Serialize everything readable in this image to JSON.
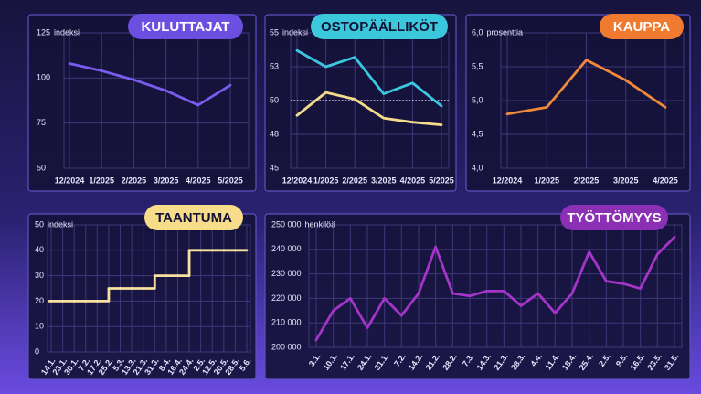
{
  "chart_data": [
    {
      "type": "line",
      "title": "KULUTTAJAT",
      "title_color": "#6b4fe0",
      "title_text_color": "#ffffff",
      "y_unit": "indeksi",
      "categories": [
        "12/2024",
        "1/2025",
        "2/2025",
        "3/2025",
        "4/2025",
        "5/2025"
      ],
      "series": [
        {
          "color": "#7b5cf0",
          "values": [
            108,
            104,
            99,
            93,
            85,
            96
          ]
        }
      ],
      "ylim": [
        50,
        125
      ],
      "yticks": [
        125,
        100,
        75,
        50
      ],
      "grid": true
    },
    {
      "type": "line",
      "title": "OSTOPÄÄLLIKÖT",
      "title_color": "#3cc8dc",
      "title_text_color": "#111133",
      "y_unit": "indeksi",
      "categories": [
        "12/2024",
        "1/2025",
        "2/2025",
        "3/2025",
        "4/2025",
        "5/2025"
      ],
      "series": [
        {
          "color": "#3cc8e0",
          "values": [
            53.7,
            52.5,
            53.2,
            50.5,
            51.3,
            49.6
          ]
        },
        {
          "color": "#f5dc8c",
          "values": [
            48.9,
            50.6,
            50.1,
            48.7,
            48.4,
            48.2
          ]
        }
      ],
      "ylim": [
        45,
        55
      ],
      "yticks": [
        55,
        {
          "value": 52.5,
          "label": "53"
        },
        50,
        {
          "value": 47.5,
          "label": "48"
        },
        45
      ],
      "ref_line": 50,
      "grid": true
    },
    {
      "type": "line",
      "title": "KAUPPA",
      "title_color": "#f07a30",
      "title_text_color": "#ffffff",
      "y_unit": "prosenttia",
      "categories": [
        "12/2024",
        "1/2025",
        "2/2025",
        "3/2025",
        "4/2025"
      ],
      "series": [
        {
          "color": "#f08a3a",
          "values": [
            4.8,
            4.9,
            5.6,
            5.3,
            4.9
          ]
        }
      ],
      "ylim": [
        4,
        6
      ],
      "yticks": [
        {
          "value": 6,
          "label": "6,0"
        },
        {
          "value": 5.5,
          "label": "5,5"
        },
        {
          "value": 5,
          "label": "5,0"
        },
        {
          "value": 4.5,
          "label": "4,5"
        },
        {
          "value": 4,
          "label": "4,0"
        }
      ],
      "grid": true
    },
    {
      "type": "step",
      "title": "TAANTUMA",
      "title_color": "#f7dc8a",
      "title_text_color": "#111133",
      "y_unit": "indeksi",
      "categories": [
        "14.1.",
        "23.1.",
        "30.1.",
        "7.2.",
        "17.2.",
        "25.2.",
        "5.3.",
        "13.3.",
        "21.3.",
        "31.3.",
        "8.4.",
        "16.4.",
        "24.4.",
        "2.5.",
        "12.5.",
        "20.5.",
        "28.5.",
        "5.6."
      ],
      "series": [
        {
          "color": "#f7e0a0",
          "values": [
            20,
            20,
            20,
            20,
            20,
            25,
            25,
            25,
            25,
            30,
            30,
            30,
            40,
            40,
            40,
            40,
            40,
            40
          ]
        }
      ],
      "ylim": [
        0,
        50
      ],
      "yticks": [
        50,
        40,
        30,
        20,
        10,
        0
      ],
      "grid": true
    },
    {
      "type": "line",
      "title": "TYÖTTÖMYYS",
      "title_color": "#8b2fb5",
      "title_text_color": "#ffffff",
      "y_unit": "henkilöä",
      "categories": [
        "3.1.",
        "10.1.",
        "17.1.",
        "24.1.",
        "31.1.",
        "7.2.",
        "14.2.",
        "21.2.",
        "28.2.",
        "7.3.",
        "14.3.",
        "21.3.",
        "28.3.",
        "4.4.",
        "11.4.",
        "18.4.",
        "25.4.",
        "2.5.",
        "9.5.",
        "16.5.",
        "23.5.",
        "31.5."
      ],
      "series": [
        {
          "color": "#a535c8",
          "values": [
            203000,
            215000,
            220000,
            208000,
            220000,
            213000,
            222000,
            241000,
            222000,
            221000,
            223000,
            223000,
            217000,
            222000,
            214000,
            222000,
            239000,
            227000,
            226000,
            224000,
            238000,
            245000
          ]
        }
      ],
      "ylim": [
        200000,
        250000
      ],
      "yticks": [
        {
          "value": 250000,
          "label": "250 000"
        },
        {
          "value": 240000,
          "label": "240 000"
        },
        {
          "value": 230000,
          "label": "230 000"
        },
        {
          "value": 220000,
          "label": "220 000"
        },
        {
          "value": 210000,
          "label": "210 000"
        },
        {
          "value": 200000,
          "label": "200 000"
        }
      ],
      "grid": true
    }
  ]
}
